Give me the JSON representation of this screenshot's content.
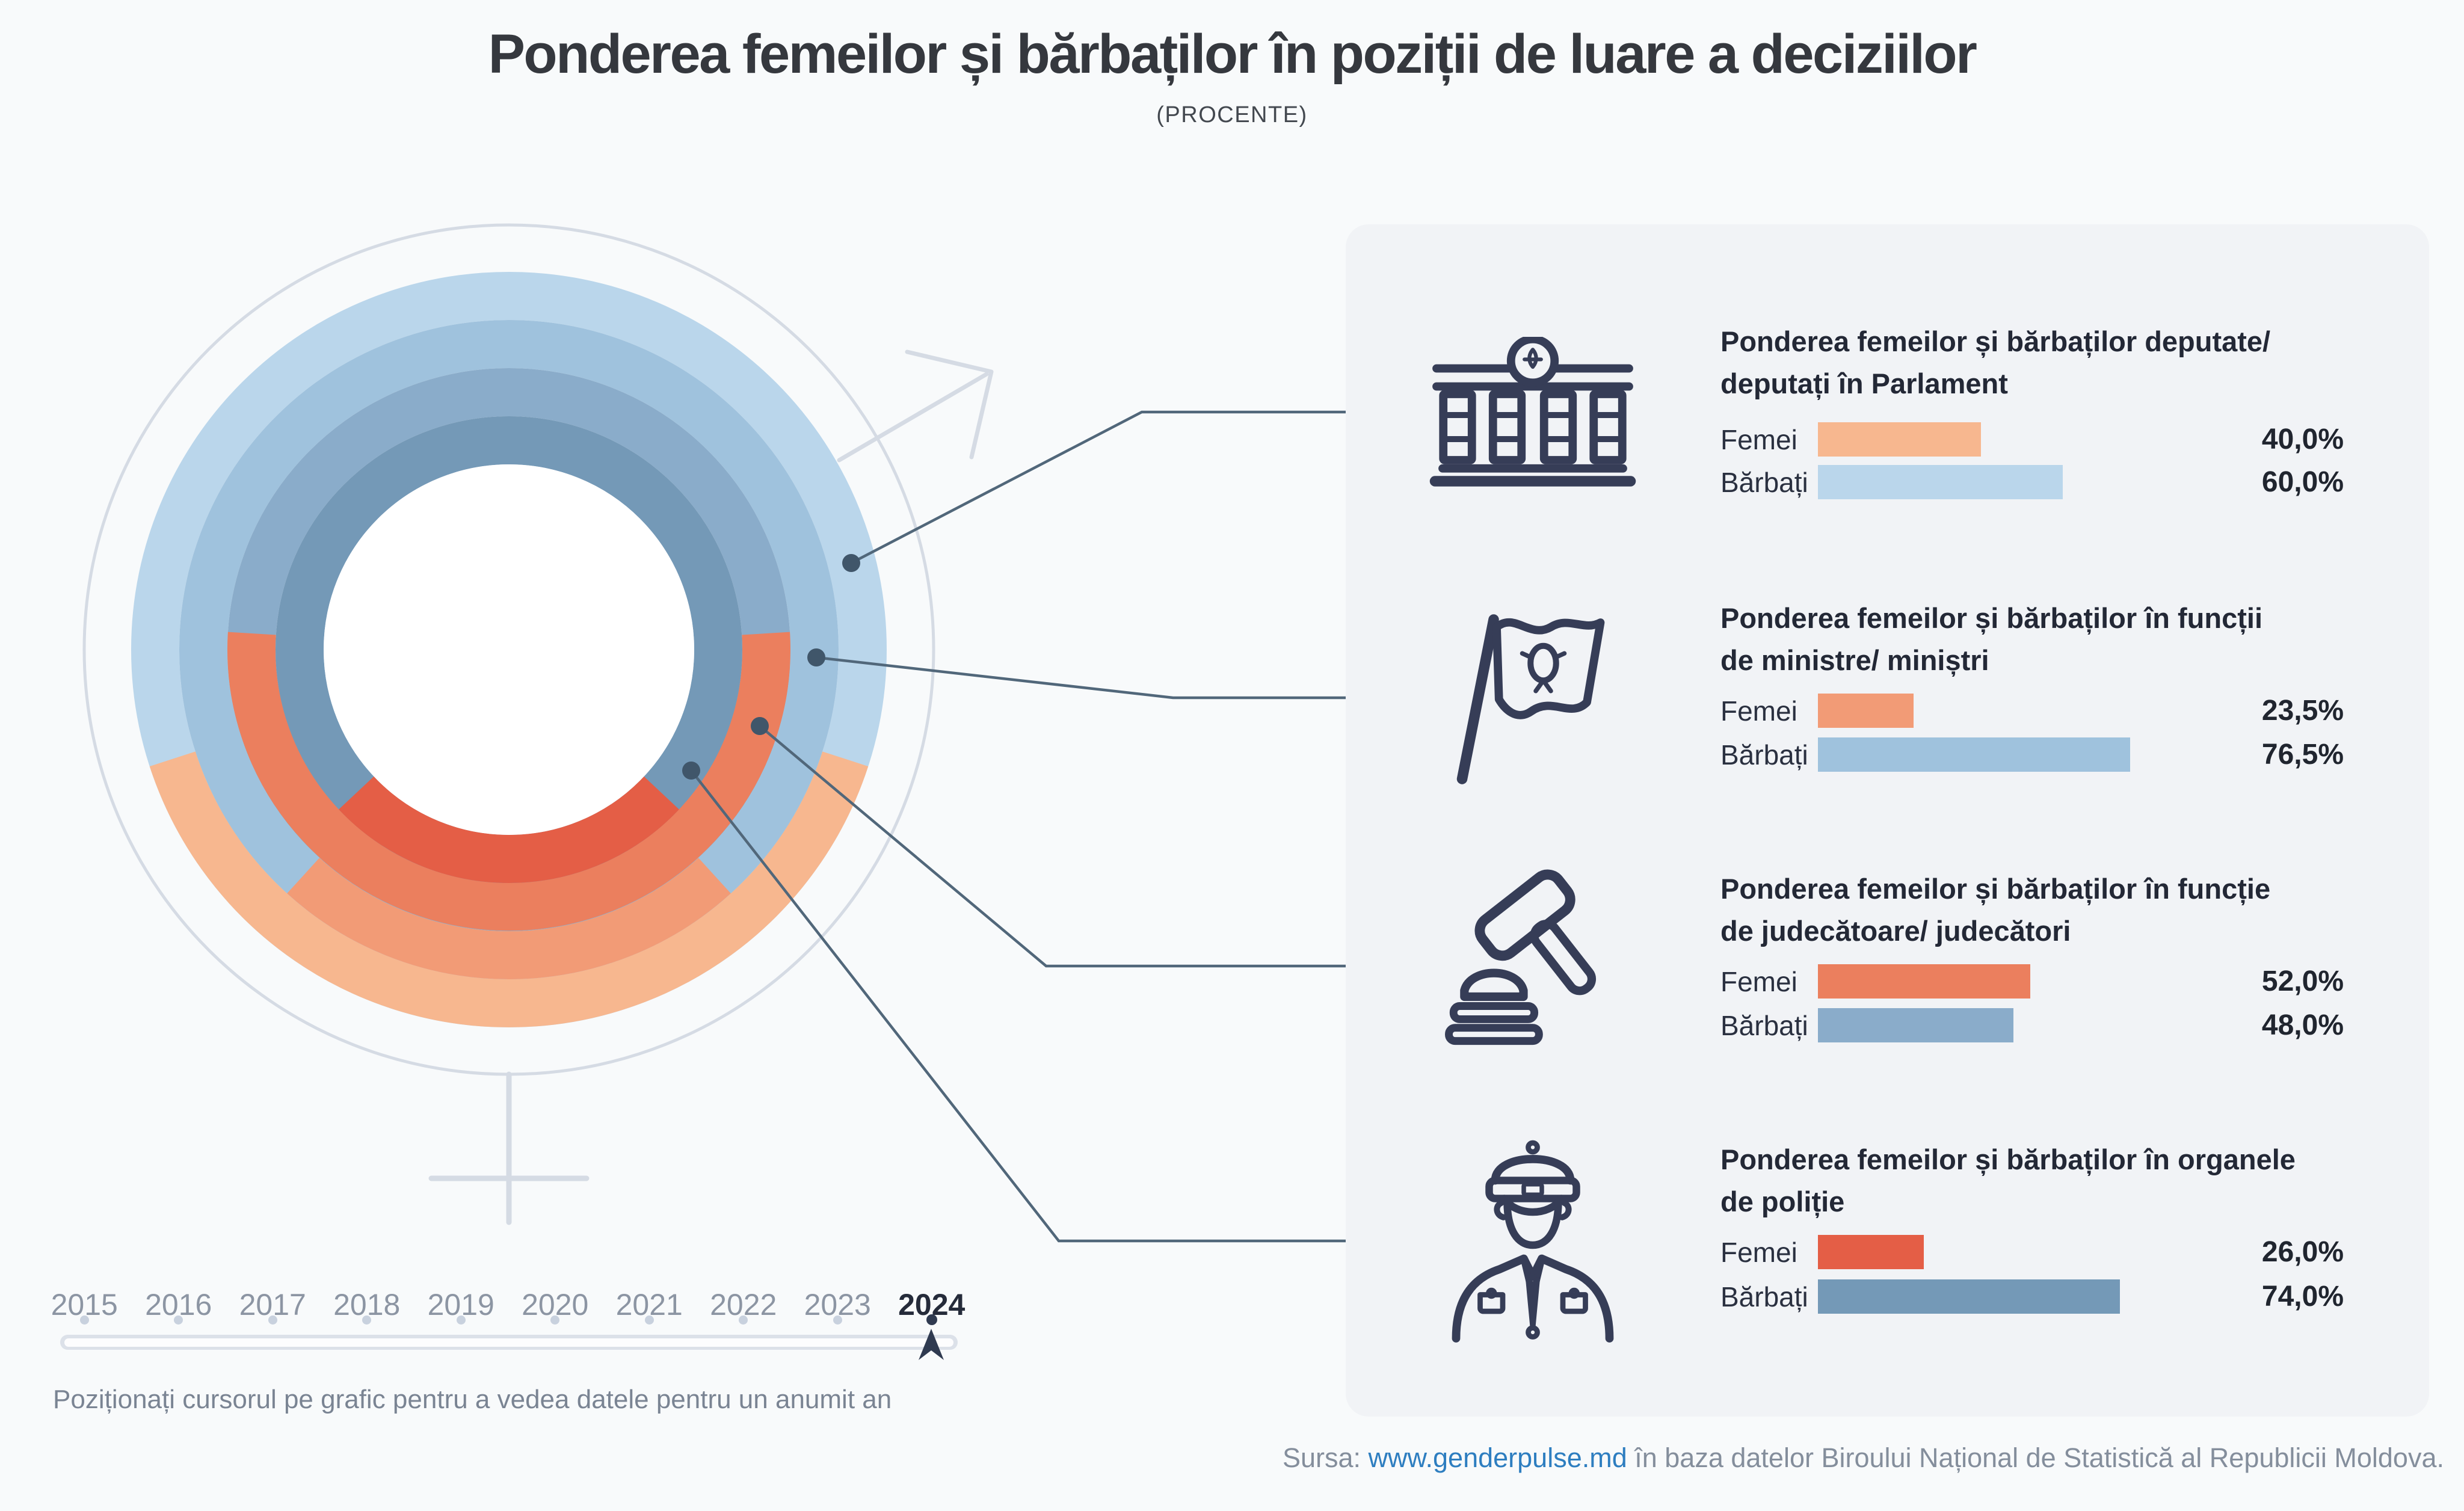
{
  "title": "Ponderea femeilor și bărbaților în poziții de luare a deciziilor",
  "subtitle": "(PROCENTE)",
  "colors": {
    "page_bg": "#F8FAFB",
    "panel_bg": "#F1F3F6",
    "icon_navy": "#363D57",
    "connector_line": "#51677A",
    "connector_dot": "#40566A",
    "gender_symbol": "#D5DBE4",
    "link_blue": "#2E7EC0",
    "active_year": "#252B3A",
    "inactive_year": "#8C95A3"
  },
  "chart_data": {
    "type": "pie",
    "variant": "concentric-donut-4-rings-with-gender-symbol",
    "title": "Ponderea femeilor și bărbaților în poziții de luare a deciziilor",
    "subtitle": "(PROCENTE)",
    "year_shown": "2024",
    "legend": [
      "Femei",
      "Bărbați"
    ],
    "rings_outer_to_inner": [
      {
        "name": "Deputate/ deputați în Parlament",
        "slices": [
          {
            "label": "Femei",
            "value": 40.0
          },
          {
            "label": "Bărbați",
            "value": 60.0
          }
        ]
      },
      {
        "name": "Funcții de ministre/ miniștri",
        "slices": [
          {
            "label": "Femei",
            "value": 23.5
          },
          {
            "label": "Bărbați",
            "value": 76.5
          }
        ]
      },
      {
        "name": "Funcție de judecătoare/ judecători",
        "slices": [
          {
            "label": "Femei",
            "value": 52.0
          },
          {
            "label": "Bărbați",
            "value": 48.0
          }
        ]
      },
      {
        "name": "Organele de poliție",
        "slices": [
          {
            "label": "Femei",
            "value": 26.0
          },
          {
            "label": "Bărbați",
            "value": 74.0
          }
        ]
      }
    ],
    "female_arc_centered_at": "bottom"
  },
  "sections": [
    {
      "icon": "parliament-icon",
      "title_lines": [
        "Ponderea femeilor și bărbaților deputate/",
        "deputați în Parlament"
      ],
      "rows": [
        {
          "label": "Femei",
          "value": 40,
          "value_label": "40,0%",
          "color": "#F7B78F"
        },
        {
          "label": "Bărbați",
          "value": 60,
          "value_label": "60,0%",
          "color": "#BAD6EB"
        }
      ]
    },
    {
      "icon": "flag-icon",
      "title_lines": [
        "Ponderea femeilor și bărbaților în funcții",
        "de ministre/ miniștri"
      ],
      "rows": [
        {
          "label": "Femei",
          "value": 23.5,
          "value_label": "23,5%",
          "color": "#F29B76"
        },
        {
          "label": "Bărbați",
          "value": 76.5,
          "value_label": "76,5%",
          "color": "#9FC2DD"
        }
      ]
    },
    {
      "icon": "gavel-icon",
      "title_lines": [
        "Ponderea femeilor și bărbaților în funcție",
        "de judecătoare/ judecători"
      ],
      "rows": [
        {
          "label": "Femei",
          "value": 52,
          "value_label": "52,0%",
          "color": "#EB7F5E"
        },
        {
          "label": "Bărbați",
          "value": 48,
          "value_label": "48,0%",
          "color": "#8AACCA"
        }
      ]
    },
    {
      "icon": "police-officer-icon",
      "title_lines": [
        "Ponderea femeilor și bărbaților în organele",
        "de poliție"
      ],
      "rows": [
        {
          "label": "Femei",
          "value": 26,
          "value_label": "26,0%",
          "color": "#E45E46"
        },
        {
          "label": "Bărbați",
          "value": 74,
          "value_label": "74,0%",
          "color": "#7499B7"
        }
      ]
    }
  ],
  "timeline": {
    "years": [
      "2015",
      "2016",
      "2017",
      "2018",
      "2019",
      "2020",
      "2021",
      "2022",
      "2023",
      "2024"
    ],
    "active_year": "2024",
    "instruction": "Poziționați cursorul pe grafic pentru a vedea datele pentru un anumit an"
  },
  "source": {
    "prefix": "Sursa: ",
    "link_text": "www.genderpulse.md",
    "suffix": " în baza datelor Biroului Național de Statistică al Republicii Moldova."
  }
}
